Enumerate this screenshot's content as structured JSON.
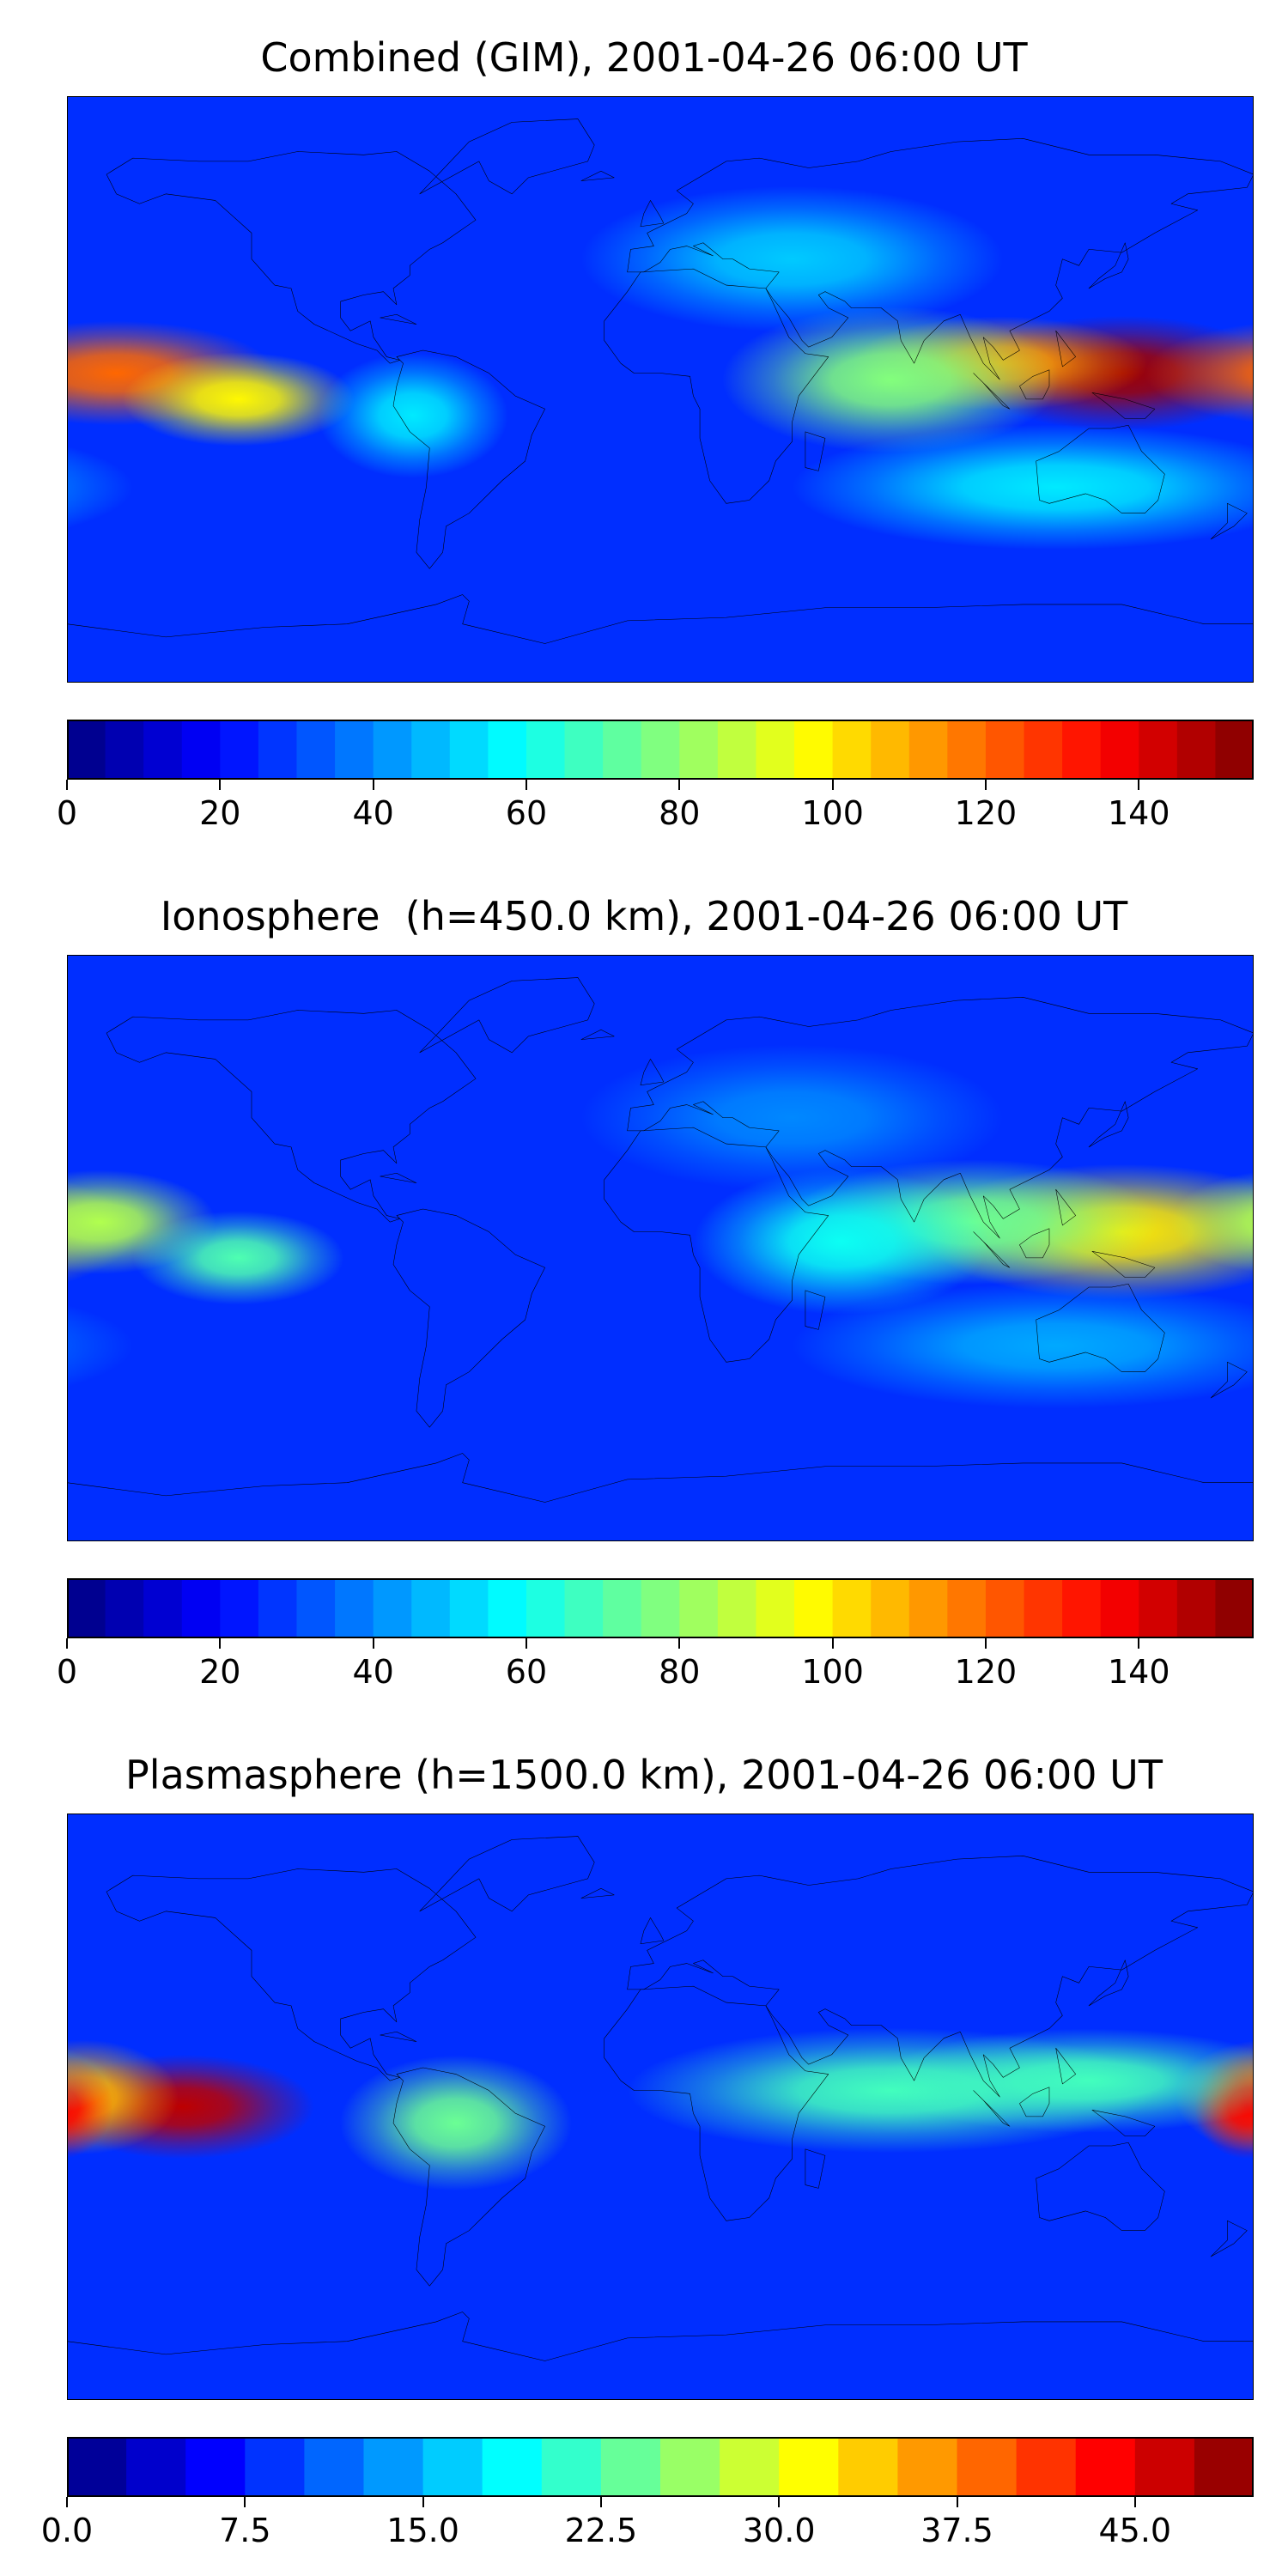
{
  "chart_data": [
    {
      "type": "heatmap",
      "title": "Combined (GIM), 2001-04-26 06:00 UT",
      "colormap": "jet",
      "colorbar": {
        "min": 0,
        "max": 155,
        "levels": 31,
        "ticks": [
          0,
          20,
          40,
          60,
          80,
          100,
          120,
          140
        ],
        "tick_labels": [
          "0",
          "20",
          "40",
          "60",
          "80",
          "100",
          "120",
          "140"
        ]
      },
      "projection": "equirectangular world map with coastlines",
      "features": [
        {
          "lon": 140,
          "lat": 5,
          "value": 150,
          "spread_lon": 30,
          "spread_lat": 11
        },
        {
          "lon": 103,
          "lat": 8,
          "value": 112,
          "spread_lon": 28,
          "spread_lat": 9
        },
        {
          "lon": 70,
          "lat": 3,
          "value": 78,
          "spread_lon": 32,
          "spread_lat": 14
        },
        {
          "lon": -165,
          "lat": 5,
          "value": 120,
          "spread_lon": 30,
          "spread_lat": 10
        },
        {
          "lon": -128,
          "lat": -3,
          "value": 98,
          "spread_lon": 22,
          "spread_lat": 9
        },
        {
          "lon": -75,
          "lat": -8,
          "value": 55,
          "spread_lon": 18,
          "spread_lat": 12
        },
        {
          "lon": 40,
          "lat": 40,
          "value": 50,
          "spread_lon": 40,
          "spread_lat": 14
        },
        {
          "lon": 120,
          "lat": -30,
          "value": 55,
          "spread_lon": 50,
          "spread_lat": 12
        }
      ]
    },
    {
      "type": "heatmap",
      "title": "Ionosphere  (h=450.0 km), 2001-04-26 06:00 UT",
      "colormap": "jet",
      "colorbar": {
        "min": 0,
        "max": 155,
        "levels": 31,
        "ticks": [
          0,
          20,
          40,
          60,
          80,
          100,
          120,
          140
        ],
        "tick_labels": [
          "0",
          "20",
          "40",
          "60",
          "80",
          "100",
          "120",
          "140"
        ]
      },
      "projection": "equirectangular world map with coastlines",
      "features": [
        {
          "lon": 140,
          "lat": 5,
          "value": 100,
          "spread_lon": 38,
          "spread_lat": 13
        },
        {
          "lon": 95,
          "lat": 8,
          "value": 75,
          "spread_lon": 35,
          "spread_lat": 12
        },
        {
          "lon": 55,
          "lat": 2,
          "value": 60,
          "spread_lon": 28,
          "spread_lat": 14
        },
        {
          "lon": -170,
          "lat": 8,
          "value": 85,
          "spread_lon": 22,
          "spread_lat": 10
        },
        {
          "lon": -128,
          "lat": -3,
          "value": 70,
          "spread_lon": 20,
          "spread_lat": 9
        },
        {
          "lon": 40,
          "lat": 40,
          "value": 40,
          "spread_lon": 40,
          "spread_lat": 14
        },
        {
          "lon": 120,
          "lat": -30,
          "value": 45,
          "spread_lon": 50,
          "spread_lat": 12
        }
      ]
    },
    {
      "type": "heatmap",
      "title": "Plasmasphere (h=1500.0 km), 2001-04-26 06:00 UT",
      "colormap": "jet",
      "colorbar": {
        "min": 0,
        "max": 50,
        "levels": 20,
        "ticks": [
          0,
          7.5,
          15,
          22.5,
          30,
          37.5,
          45
        ],
        "tick_labels": [
          "0.0",
          "7.5",
          "15.0",
          "22.5",
          "30.0",
          "37.5",
          "45.0"
        ]
      },
      "projection": "equirectangular world map with coastlines",
      "features": [
        {
          "lon": -145,
          "lat": 0,
          "value": 47,
          "spread_lon": 25,
          "spread_lat": 10
        },
        {
          "lon": -175,
          "lat": 3,
          "value": 35,
          "spread_lon": 18,
          "spread_lat": 11
        },
        {
          "lon": 178,
          "lat": 0,
          "value": 44,
          "spread_lon": 10,
          "spread_lat": 10
        },
        {
          "lon": -62,
          "lat": -5,
          "value": 24,
          "spread_lon": 22,
          "spread_lat": 13
        },
        {
          "lon": 70,
          "lat": 5,
          "value": 22,
          "spread_lon": 50,
          "spread_lat": 12
        },
        {
          "lon": 130,
          "lat": 8,
          "value": 22,
          "spread_lon": 40,
          "spread_lat": 10
        }
      ]
    }
  ]
}
